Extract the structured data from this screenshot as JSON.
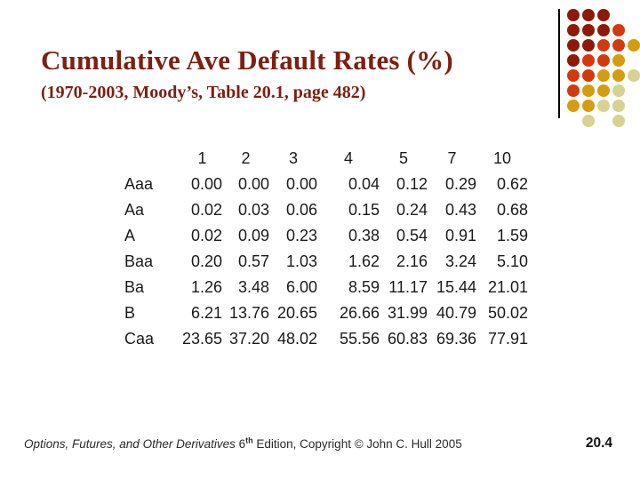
{
  "slide": {
    "title": "Cumulative Ave Default Rates (%)",
    "subtitle": "(1970-2003, Moody’s, Table 20.1, page 482)",
    "page_number": "20.4"
  },
  "footer": {
    "book_title": "Options, Futures, and Other Derivatives",
    "edition_number": "6",
    "edition_superscript": "th",
    "tail": " Edition, Copyright © John C. Hull 2005"
  },
  "chart_data": {
    "type": "table",
    "title": "Cumulative Ave Default Rates (%)",
    "row_header_label": "",
    "column_headers": [
      "1",
      "2",
      "3",
      "4",
      "5",
      "7",
      "10"
    ],
    "rows": [
      {
        "label": "Aaa",
        "values": [
          "0.00",
          "0.00",
          "0.00",
          "0.04",
          "0.12",
          "0.29",
          "0.62"
        ]
      },
      {
        "label": "Aa",
        "values": [
          "0.02",
          "0.03",
          "0.06",
          "0.15",
          "0.24",
          "0.43",
          "0.68"
        ]
      },
      {
        "label": "A",
        "values": [
          "0.02",
          "0.09",
          "0.23",
          "0.38",
          "0.54",
          "0.91",
          "1.59"
        ]
      },
      {
        "label": "Baa",
        "values": [
          "0.20",
          "0.57",
          "1.03",
          "1.62",
          "2.16",
          "3.24",
          "5.10"
        ]
      },
      {
        "label": "Ba",
        "values": [
          "1.26",
          "3.48",
          "6.00",
          "8.59",
          "11.17",
          "15.44",
          "21.01"
        ]
      },
      {
        "label": "B",
        "values": [
          "6.21",
          "13.76",
          "20.65",
          "26.66",
          "31.99",
          "40.79",
          "50.02"
        ]
      },
      {
        "label": "Caa",
        "values": [
          "23.65",
          "37.20",
          "48.02",
          "55.56",
          "60.83",
          "69.36",
          "77.91"
        ]
      }
    ]
  },
  "decoration": {
    "palette": {
      "D": "#8d1a09",
      "R": "#d23a0e",
      "G": "#d59c11",
      "T": "#d6d291"
    },
    "dot_pattern": [
      "DDD..",
      "DDDR.",
      "DDRRG",
      "DRRG.",
      "RRGGT",
      "RGGT.",
      "GGTT.",
      ".T.T."
    ]
  },
  "colors": {
    "title_accent": "#7d2012",
    "table_text": "#1a1a1a",
    "decoration_line": "#000000"
  }
}
